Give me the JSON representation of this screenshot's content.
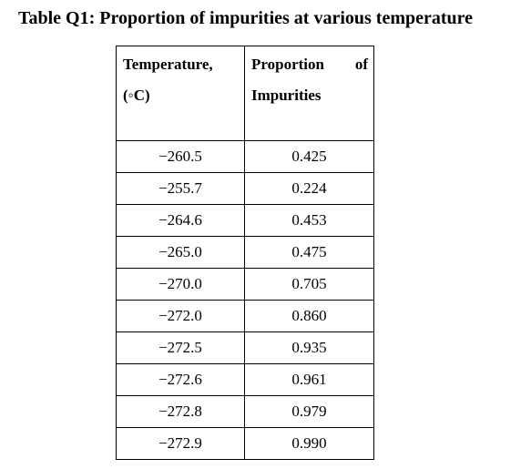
{
  "table": {
    "caption": "Table Q1: Proportion of impurities at various temperature",
    "headers": [
      {
        "line1": "Temperature,",
        "line2": "(◦C)"
      },
      {
        "line1": "Proportion of",
        "line2": "Impurities"
      }
    ],
    "rows": [
      [
        "−260.5",
        "0.425"
      ],
      [
        "−255.7",
        "0.224"
      ],
      [
        "−264.6",
        "0.453"
      ],
      [
        "−265.0",
        "0.475"
      ],
      [
        "−270.0",
        "0.705"
      ],
      [
        "−272.0",
        "0.860"
      ],
      [
        "−272.5",
        "0.935"
      ],
      [
        "−272.6",
        "0.961"
      ],
      [
        "−272.8",
        "0.979"
      ],
      [
        "−272.9",
        "0.990"
      ]
    ]
  }
}
